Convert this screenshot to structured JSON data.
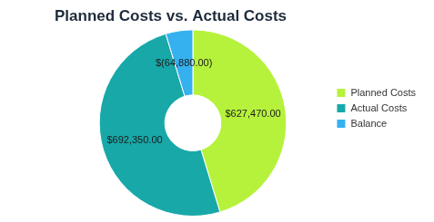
{
  "chart_data": {
    "type": "doughnut",
    "title": "Planned Costs vs. Actual Costs",
    "categories": [
      "Planned Costs",
      "Actual Costs",
      "Balance"
    ],
    "values": [
      627470,
      692350,
      -64880
    ],
    "value_labels": [
      "$627,470.00",
      "$692,350.00",
      "$(64,880.00)"
    ],
    "colors": [
      "#b6f23c",
      "#18a8a8",
      "#35b1ef"
    ],
    "legend": "right",
    "data_labels": true
  }
}
